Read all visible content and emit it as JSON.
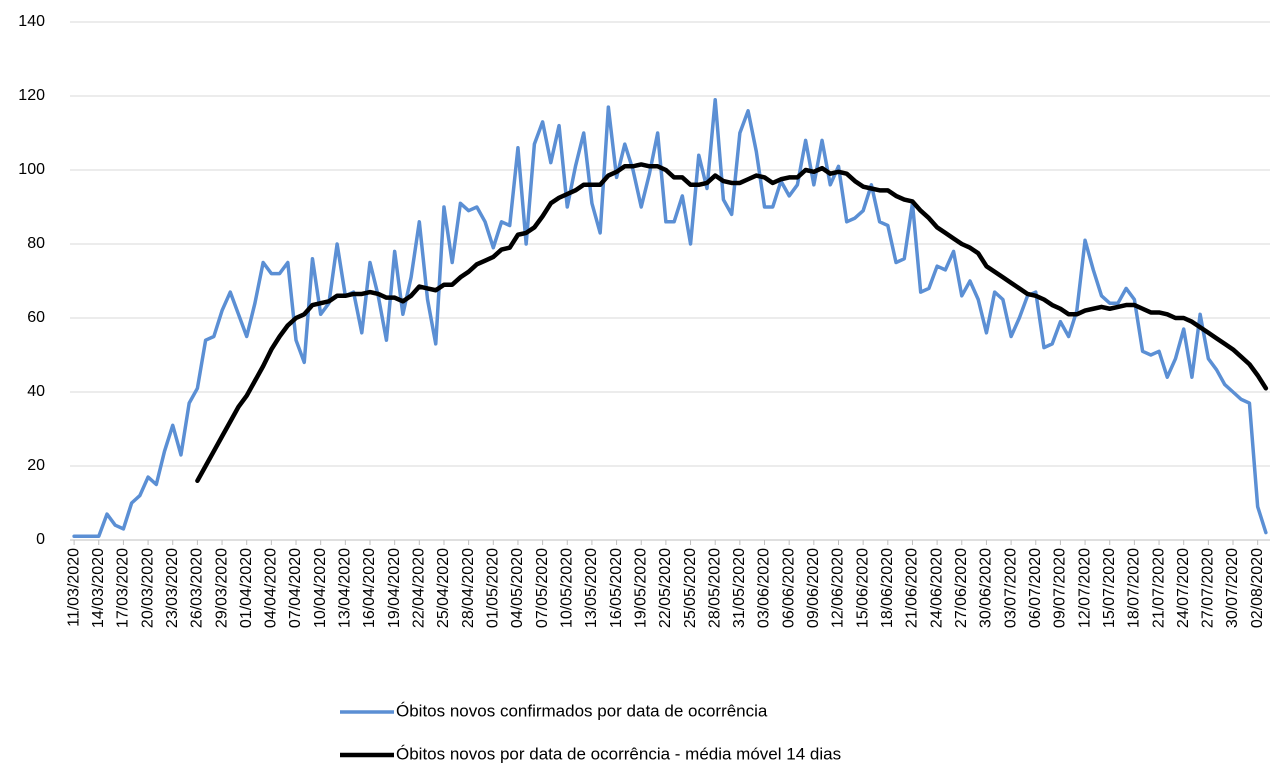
{
  "chart_data": {
    "type": "line",
    "categories": [
      "11/03/2020",
      null,
      null,
      "14/03/2020",
      null,
      null,
      "17/03/2020",
      null,
      null,
      "20/03/2020",
      null,
      null,
      "23/03/2020",
      null,
      null,
      "26/03/2020",
      null,
      null,
      "29/03/2020",
      null,
      null,
      "01/04/2020",
      null,
      null,
      "04/04/2020",
      null,
      null,
      "07/04/2020",
      null,
      null,
      "10/04/2020",
      null,
      null,
      "13/04/2020",
      null,
      null,
      "16/04/2020",
      null,
      null,
      "19/04/2020",
      null,
      null,
      "22/04/2020",
      null,
      null,
      "25/04/2020",
      null,
      null,
      "28/04/2020",
      null,
      null,
      "01/05/2020",
      null,
      null,
      "04/05/2020",
      null,
      null,
      "07/05/2020",
      null,
      null,
      "10/05/2020",
      null,
      null,
      "13/05/2020",
      null,
      null,
      "16/05/2020",
      null,
      null,
      "19/05/2020",
      null,
      null,
      "22/05/2020",
      null,
      null,
      "25/05/2020",
      null,
      null,
      "28/05/2020",
      null,
      null,
      "31/05/2020",
      null,
      null,
      "03/06/2020",
      null,
      null,
      "06/06/2020",
      null,
      null,
      "09/06/2020",
      null,
      null,
      "12/06/2020",
      null,
      null,
      "15/06/2020",
      null,
      null,
      "18/06/2020",
      null,
      null,
      "21/06/2020",
      null,
      null,
      "24/06/2020",
      null,
      null,
      "27/06/2020",
      null,
      null,
      "30/06/2020",
      null,
      null,
      "03/07/2020",
      null,
      null,
      "06/07/2020",
      null,
      null,
      "09/07/2020",
      null,
      null,
      "12/07/2020",
      null,
      null,
      "15/07/2020",
      null,
      null,
      "18/07/2020",
      null,
      null,
      "21/07/2020",
      null,
      null,
      "24/07/2020",
      null,
      null,
      "27/07/2020",
      null,
      null,
      "30/07/2020",
      null,
      null,
      "02/08/2020",
      null
    ],
    "series": [
      {
        "name": "Óbitos novos confirmados por data de ocorrência",
        "color": "#5b8fd4",
        "values": [
          1,
          1,
          1,
          1,
          7,
          4,
          3,
          10,
          12,
          17,
          15,
          24,
          31,
          23,
          37,
          41,
          54,
          55,
          62,
          67,
          61,
          55,
          64,
          75,
          72,
          72,
          75,
          54,
          48,
          76,
          61,
          64,
          80,
          66,
          67,
          56,
          75,
          66,
          54,
          78,
          61,
          71,
          86,
          65,
          53,
          90,
          75,
          91,
          89,
          90,
          86,
          79,
          86,
          85,
          106,
          80,
          107,
          113,
          102,
          112,
          90,
          101,
          110,
          91,
          83,
          117,
          98,
          107,
          100,
          90,
          99,
          110,
          86,
          86,
          93,
          80,
          104,
          95,
          119,
          92,
          88,
          110,
          116,
          105,
          90,
          90,
          97,
          93,
          96,
          108,
          96,
          108,
          96,
          101,
          86,
          87,
          89,
          96,
          86,
          85,
          75,
          76,
          91,
          67,
          68,
          74,
          73,
          78,
          66,
          70,
          65,
          56,
          67,
          65,
          55,
          60,
          66,
          67,
          52,
          53,
          59,
          55,
          62,
          81,
          73,
          66,
          64,
          64,
          68,
          65,
          51,
          50,
          51,
          44,
          49,
          57,
          44,
          61,
          49,
          46,
          42,
          40,
          38,
          37,
          9,
          2
        ]
      },
      {
        "name": "Óbitos novos por data de ocorrência - média móvel 14 dias",
        "color": "#000000",
        "values": [
          null,
          null,
          null,
          null,
          null,
          null,
          null,
          null,
          null,
          null,
          null,
          null,
          null,
          null,
          null,
          16,
          20,
          24,
          28,
          32,
          36,
          39,
          43,
          47,
          51.5,
          55,
          58,
          60,
          61,
          63.5,
          64,
          64.5,
          66,
          66,
          66.5,
          66.5,
          67,
          66.5,
          65.5,
          65.5,
          64.5,
          66,
          68.5,
          68,
          67.5,
          69,
          69,
          71,
          72.5,
          74.5,
          75.5,
          76.5,
          78.5,
          79,
          82.5,
          83,
          84.5,
          87.5,
          91,
          92.5,
          93.5,
          94.5,
          96,
          96,
          96,
          98.5,
          99.5,
          101,
          101,
          101.5,
          101,
          101,
          100,
          98,
          98,
          96,
          96,
          96.5,
          98.5,
          97,
          96.5,
          96.5,
          97.5,
          98.5,
          98,
          96.5,
          97.5,
          98,
          98,
          100,
          99.5,
          100.5,
          99,
          99.5,
          99,
          97,
          95.5,
          95,
          94.5,
          94.5,
          93,
          92,
          91.5,
          89,
          87,
          84.5,
          83,
          81.5,
          80,
          79,
          77.5,
          74,
          72.5,
          71,
          69.5,
          68,
          66.5,
          66,
          65,
          63.5,
          62.5,
          61,
          61,
          62,
          62.5,
          63,
          62.5,
          63,
          63.5,
          63.5,
          62.5,
          61.5,
          61.5,
          61,
          60,
          60,
          59,
          57.5,
          56,
          54.5,
          53,
          51.5,
          49.5,
          47.5,
          44.5,
          41
        ]
      }
    ],
    "ylim": [
      0,
      140
    ],
    "yticks": [
      0,
      20,
      40,
      60,
      80,
      100,
      120,
      140
    ],
    "grid": true,
    "legend": "bottom"
  }
}
